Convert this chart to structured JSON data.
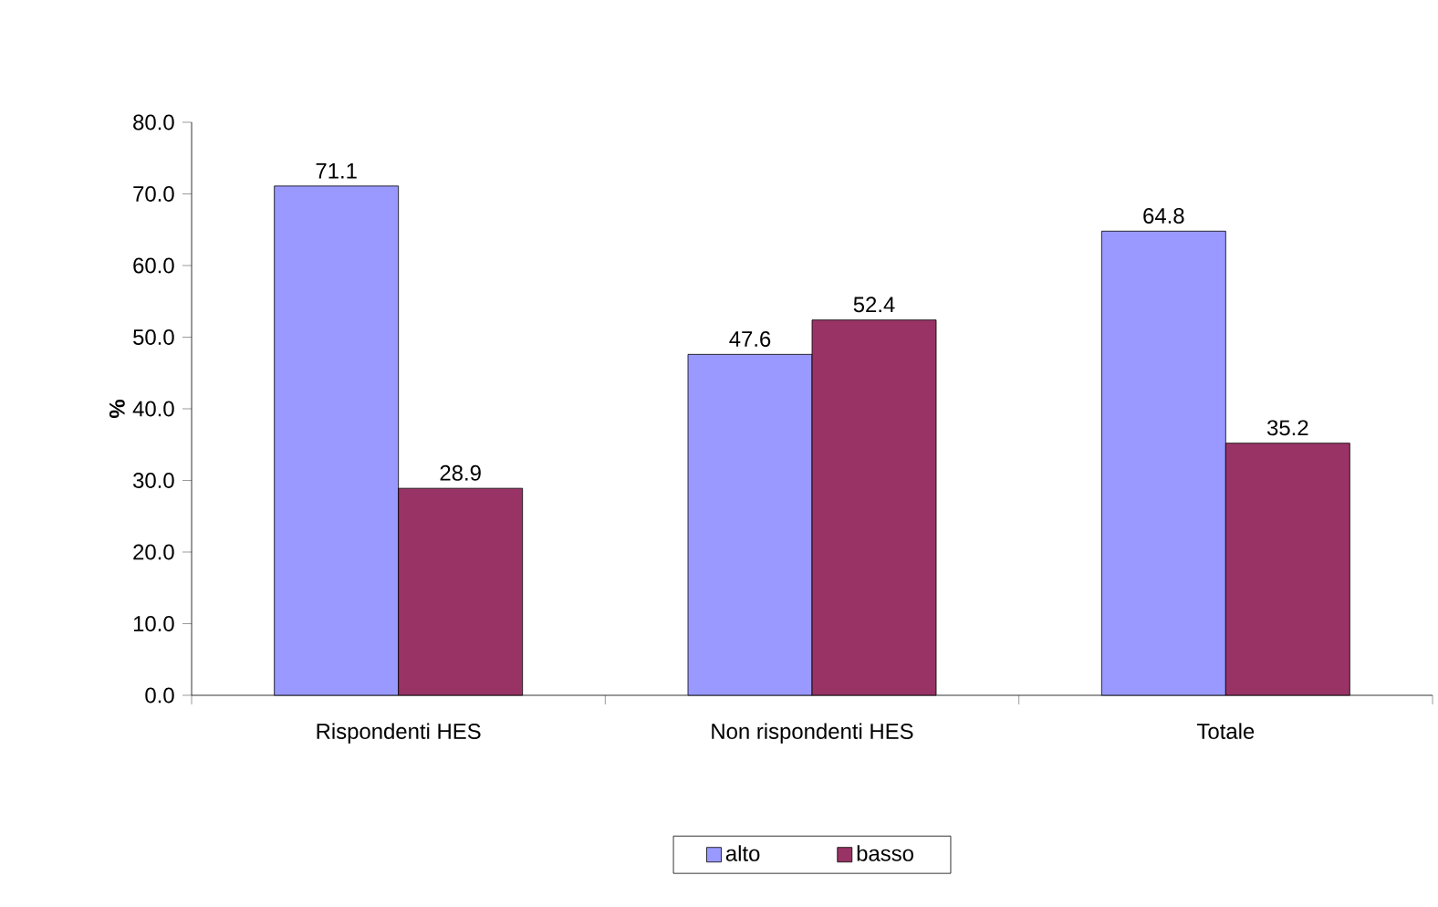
{
  "chart_data": {
    "type": "bar",
    "ylabel": "%",
    "categories": [
      "Rispondenti HES",
      "Non rispondenti HES",
      "Totale"
    ],
    "series": [
      {
        "name": "alto",
        "color": "#9999ff",
        "values": [
          71.1,
          47.6,
          64.8
        ]
      },
      {
        "name": "basso",
        "color": "#993366",
        "values": [
          28.9,
          52.4,
          35.2
        ]
      }
    ],
    "ylim": [
      0,
      80
    ],
    "yticks": [
      {
        "value": 0,
        "label": "0.0"
      },
      {
        "value": 10,
        "label": "10.0"
      },
      {
        "value": 20,
        "label": "20.0"
      },
      {
        "value": 30,
        "label": "30.0"
      },
      {
        "value": 40,
        "label": "40.0"
      },
      {
        "value": 50,
        "label": "50.0"
      },
      {
        "value": 60,
        "label": "60.0"
      },
      {
        "value": 70,
        "label": "70.0"
      },
      {
        "value": 80,
        "label": "80.0"
      }
    ],
    "data_labels": true,
    "legend": "bottom",
    "grid": false
  }
}
